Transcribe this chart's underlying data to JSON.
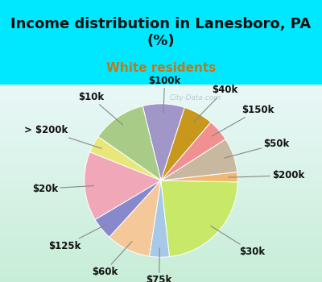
{
  "title": "Income distribution in Lanesboro, PA\n(%)",
  "subtitle": "White residents",
  "slices": [
    {
      "label": "$100k",
      "value": 8.5,
      "color": "#a096c8"
    },
    {
      "label": "$10k",
      "value": 11.0,
      "color": "#a8cc88"
    },
    {
      "label": "> $200k",
      "value": 3.5,
      "color": "#e8e87a"
    },
    {
      "label": "$20k",
      "value": 14.0,
      "color": "#f0a8b8"
    },
    {
      "label": "$125k",
      "value": 4.5,
      "color": "#8888cc"
    },
    {
      "label": "$60k",
      "value": 9.0,
      "color": "#f5c89a"
    },
    {
      "label": "$75k",
      "value": 4.0,
      "color": "#a8c8e8"
    },
    {
      "label": "$30k",
      "value": 22.0,
      "color": "#c8e868"
    },
    {
      "label": "$200k",
      "value": 2.0,
      "color": "#f0b870"
    },
    {
      "label": "$50k",
      "value": 7.0,
      "color": "#c8b8a0"
    },
    {
      "label": "$150k",
      "value": 4.5,
      "color": "#f09090"
    },
    {
      "label": "$40k",
      "value": 6.0,
      "color": "#c8981c"
    }
  ],
  "title_bg": "#00e8ff",
  "chart_bg_top": "#e8f8f8",
  "chart_bg_bottom": "#c8ecd8",
  "title_color": "#111111",
  "title_fontsize": 13,
  "subtitle_color": "#c07818",
  "subtitle_fontsize": 11,
  "label_fontsize": 8.5,
  "watermark": "City-Data.com",
  "watermark_color": "#aabbcc"
}
